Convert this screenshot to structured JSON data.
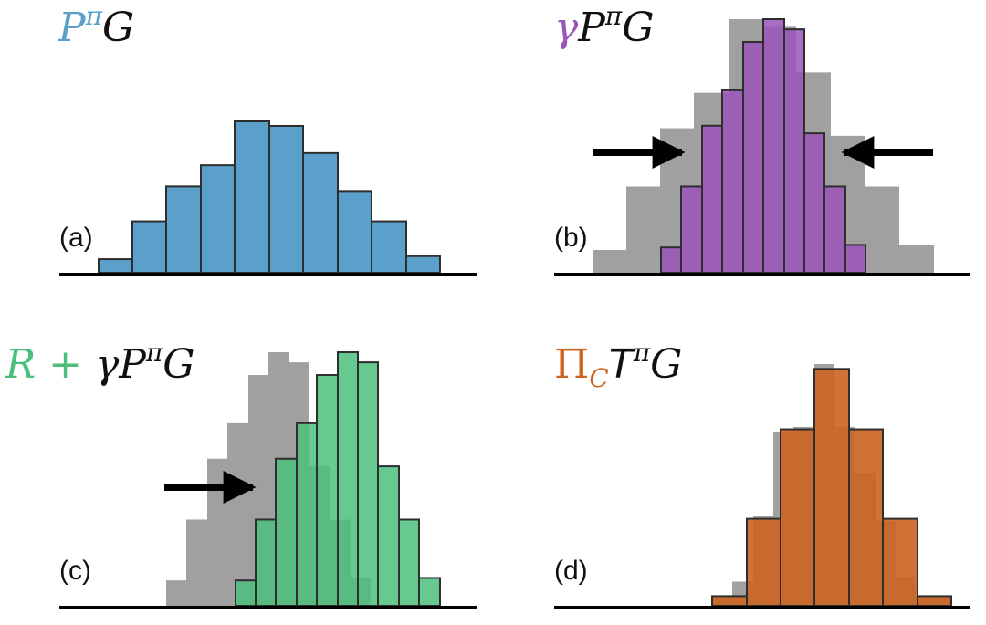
{
  "colors": {
    "blue": "#5b9fcb",
    "purple": "#9a55b8",
    "green": "#4cbf7c",
    "orange": "#cc6420",
    "gray": "#a0a0a0",
    "stroke": "#2e2e2e",
    "axis": "#000000",
    "text_black": "#111111"
  },
  "panels": [
    {
      "id": "a",
      "label": "(a)",
      "title": {
        "parts": [
          {
            "t": "P",
            "color": "blue"
          },
          {
            "t": "π",
            "color": "blue",
            "sup": true
          },
          {
            "t": "G",
            "color": "text_black"
          }
        ]
      },
      "histograms": [
        {
          "series": "P^π G",
          "color": "blue",
          "opacity": 1,
          "edges": [
            108,
            145,
            182,
            220,
            257,
            295,
            332,
            370,
            407,
            445,
            482
          ],
          "values": [
            0.09,
            0.34,
            0.57,
            0.71,
            1.0,
            0.97,
            0.79,
            0.54,
            0.34,
            0.11
          ]
        }
      ],
      "arrows": []
    },
    {
      "id": "b",
      "label": "(b)",
      "title": {
        "parts": [
          {
            "t": "γ",
            "color": "purple"
          },
          {
            "t": "P",
            "color": "text_black"
          },
          {
            "t": "π",
            "color": "text_black",
            "sup": true
          },
          {
            "t": "G",
            "color": "text_black"
          }
        ]
      },
      "histograms": [
        {
          "series": "P^π G (reference)",
          "color": "gray",
          "opacity": 1,
          "edges": [
            650,
            686,
            723,
            760,
            798,
            835,
            872,
            910,
            948,
            985,
            1023
          ],
          "values": [
            0.09,
            0.34,
            0.57,
            0.71,
            1.0,
            0.97,
            0.79,
            0.54,
            0.34,
            0.11
          ]
        },
        {
          "series": "γ P^π G",
          "color": "purple",
          "opacity": 0.85,
          "edges": [
            724,
            746,
            769,
            791,
            814,
            836,
            859,
            881,
            903,
            926,
            948
          ],
          "values": [
            0.1,
            0.34,
            0.58,
            0.72,
            0.91,
            1.0,
            0.96,
            0.55,
            0.34,
            0.11
          ]
        }
      ],
      "arrows": [
        {
          "dir": "right"
        },
        {
          "dir": "left"
        }
      ]
    },
    {
      "id": "c",
      "label": "(c)",
      "title": {
        "parts": [
          {
            "t": "R",
            "color": "green"
          },
          {
            "t": " + ",
            "color": "green",
            "up": true
          },
          {
            "t": "γ",
            "color": "text_black"
          },
          {
            "t": "P",
            "color": "text_black"
          },
          {
            "t": "π",
            "color": "text_black",
            "sup": true
          },
          {
            "t": "G",
            "color": "text_black"
          }
        ]
      },
      "histograms": [
        {
          "series": "γ P^π G (reference)",
          "color": "gray",
          "opacity": 1,
          "edges": [
            182,
            204,
            227,
            249,
            272,
            294,
            317,
            339,
            361,
            384,
            406
          ],
          "values": [
            0.1,
            0.34,
            0.58,
            0.72,
            0.91,
            1.0,
            0.96,
            0.55,
            0.34,
            0.11
          ]
        },
        {
          "series": "R + γ P^π G",
          "color": "green",
          "opacity": 0.85,
          "edges": [
            258,
            280,
            302,
            325,
            347,
            370,
            392,
            414,
            437,
            459,
            482
          ],
          "values": [
            0.1,
            0.34,
            0.58,
            0.72,
            0.91,
            1.0,
            0.96,
            0.55,
            0.34,
            0.11
          ]
        }
      ],
      "arrows": [
        {
          "dir": "right"
        }
      ]
    },
    {
      "id": "d",
      "label": "(d)",
      "title": {
        "parts": [
          {
            "t": "Π",
            "color": "orange",
            "up": true
          },
          {
            "t": "C",
            "color": "orange",
            "sub": true
          },
          {
            "t": "T",
            "color": "text_black",
            "cal": true
          },
          {
            "t": "π",
            "color": "text_black",
            "sup": true
          },
          {
            "t": "G",
            "color": "text_black"
          }
        ]
      },
      "histograms": [
        {
          "series": "T^π G (reference)",
          "color": "gray",
          "opacity": 1,
          "edges": [
            780,
            802,
            825,
            847,
            869,
            892,
            914,
            936,
            959,
            981,
            1003,
            1026,
            1042
          ],
          "values": [
            0.04,
            0.1,
            0.37,
            0.72,
            0.74,
            1.0,
            0.74,
            0.55,
            0.35,
            0.12,
            0.04,
            0.04
          ]
        },
        {
          "series": "Π_C T^π G",
          "color": "orange",
          "opacity": 0.9,
          "edges": [
            780,
            818,
            855,
            892,
            930,
            967,
            1005,
            1042
          ],
          "values": [
            0.04,
            0.36,
            0.73,
            0.98,
            0.73,
            0.36,
            0.04
          ]
        }
      ],
      "arrows": []
    }
  ]
}
